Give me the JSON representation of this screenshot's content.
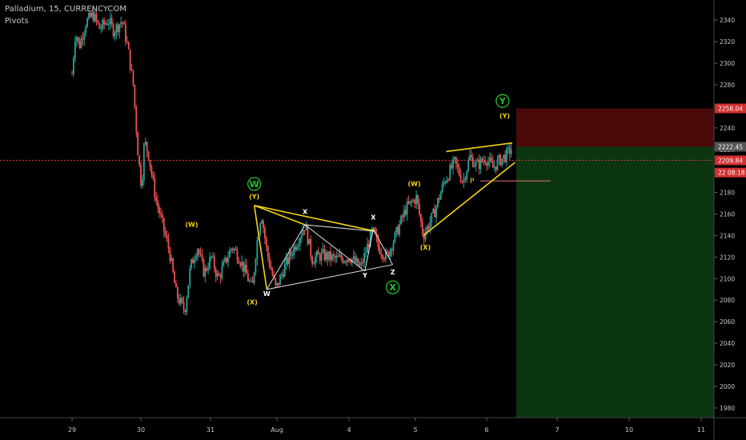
{
  "header": {
    "symbol_line": "Palladium, 15, CURRENCYCOM",
    "indicator": "Pivots"
  },
  "colors": {
    "background": "#000000",
    "up_candle": "#26a69a",
    "down_candle": "#ef5350",
    "pattern": "#f5d414",
    "wave_circle": "#27c227",
    "price_line": "#e53935",
    "stop_zone": "#4a0a0a",
    "target_zone": "#0b3510",
    "text": "#c8c8c8"
  },
  "chart_data": {
    "type": "candlestick",
    "x_ticks": [
      "29",
      "30",
      "31",
      "Aug",
      "4",
      "5",
      "6",
      "7",
      "10",
      "11"
    ],
    "y_ticks": [
      1980,
      2000,
      2020,
      2040,
      2060,
      2080,
      2100,
      2120,
      2140,
      2160,
      2180,
      2200,
      2220,
      2240,
      2260,
      2280,
      2300,
      2320,
      2340
    ],
    "ylim": [
      1971,
      2355
    ],
    "price_tags": [
      {
        "value": 2258.04,
        "text": "2258.04",
        "bg": "#d32f2f"
      },
      {
        "value": 2222.45,
        "text": "2222.45",
        "bg": "#555555"
      },
      {
        "value": 2209.84,
        "text": "2209.84",
        "bg": "#d32f2f"
      },
      {
        "value": 2198.5,
        "text": "22 08:18",
        "bg": "#d32f2f"
      }
    ],
    "current_price": 2209.84,
    "position": {
      "stop": 2258.04,
      "entry": 2222.45,
      "target": 1971
    },
    "pivot": {
      "label": "P",
      "value": 2190
    },
    "price_path": [
      {
        "d": 0.0,
        "p": 2290
      },
      {
        "d": 0.05,
        "p": 2330
      },
      {
        "d": 0.1,
        "p": 2315
      },
      {
        "d": 0.2,
        "p": 2338
      },
      {
        "d": 0.3,
        "p": 2345
      },
      {
        "d": 0.4,
        "p": 2332
      },
      {
        "d": 0.52,
        "p": 2340
      },
      {
        "d": 0.6,
        "p": 2330
      },
      {
        "d": 0.72,
        "p": 2340
      },
      {
        "d": 0.8,
        "p": 2315
      },
      {
        "d": 0.88,
        "p": 2280
      },
      {
        "d": 0.95,
        "p": 2215
      },
      {
        "d": 1.0,
        "p": 2185
      },
      {
        "d": 1.04,
        "p": 2228
      },
      {
        "d": 1.1,
        "p": 2215
      },
      {
        "d": 1.2,
        "p": 2175
      },
      {
        "d": 1.3,
        "p": 2150
      },
      {
        "d": 1.4,
        "p": 2125
      },
      {
        "d": 1.5,
        "p": 2085
      },
      {
        "d": 1.62,
        "p": 2070
      },
      {
        "d": 1.7,
        "p": 2110
      },
      {
        "d": 1.8,
        "p": 2130
      },
      {
        "d": 1.9,
        "p": 2105
      },
      {
        "d": 2.0,
        "p": 2120
      },
      {
        "d": 2.1,
        "p": 2100
      },
      {
        "d": 2.2,
        "p": 2115
      },
      {
        "d": 2.3,
        "p": 2130
      },
      {
        "d": 2.4,
        "p": 2120
      },
      {
        "d": 2.5,
        "p": 2105
      },
      {
        "d": 2.59,
        "p": 2090
      },
      {
        "d": 2.65,
        "p": 2130
      },
      {
        "d": 2.72,
        "p": 2162
      },
      {
        "d": 2.8,
        "p": 2125
      },
      {
        "d": 2.93,
        "p": 2090
      },
      {
        "d": 3.05,
        "p": 2110
      },
      {
        "d": 3.2,
        "p": 2130
      },
      {
        "d": 3.35,
        "p": 2150
      },
      {
        "d": 3.45,
        "p": 2118
      },
      {
        "d": 3.6,
        "p": 2122
      },
      {
        "d": 3.8,
        "p": 2118
      },
      {
        "d": 4.0,
        "p": 2120
      },
      {
        "d": 4.15,
        "p": 2110
      },
      {
        "d": 4.32,
        "p": 2145
      },
      {
        "d": 4.4,
        "p": 2130
      },
      {
        "d": 4.52,
        "p": 2120
      },
      {
        "d": 4.65,
        "p": 2140
      },
      {
        "d": 4.8,
        "p": 2165
      },
      {
        "d": 4.95,
        "p": 2175
      },
      {
        "d": 5.05,
        "p": 2140
      },
      {
        "d": 5.2,
        "p": 2160
      },
      {
        "d": 5.35,
        "p": 2190
      },
      {
        "d": 5.5,
        "p": 2208
      },
      {
        "d": 5.62,
        "p": 2190
      },
      {
        "d": 5.72,
        "p": 2213
      },
      {
        "d": 5.82,
        "p": 2205
      },
      {
        "d": 5.95,
        "p": 2212
      },
      {
        "d": 6.05,
        "p": 2203
      },
      {
        "d": 6.15,
        "p": 2210
      },
      {
        "d": 6.25,
        "p": 2215
      },
      {
        "d": 6.33,
        "p": 2222
      }
    ],
    "trend_lines": [
      {
        "x1": 2.62,
        "y1": 2168,
        "x2": 3.35,
        "y2": 2150
      },
      {
        "x1": 3.35,
        "y1": 2150,
        "x2": 4.36,
        "y2": 2144
      },
      {
        "x1": 2.62,
        "y1": 2168,
        "x2": 4.36,
        "y2": 2144
      },
      {
        "x1": 2.62,
        "y1": 2168,
        "x2": 2.8,
        "y2": 2090
      },
      {
        "x1": 2.8,
        "y1": 2090,
        "x2": 4.61,
        "y2": 2113
      },
      {
        "x1": 2.8,
        "y1": 2090,
        "x2": 3.35,
        "y2": 2150
      },
      {
        "x1": 3.35,
        "y1": 2150,
        "x2": 4.21,
        "y2": 2107
      },
      {
        "x1": 4.21,
        "y1": 2107,
        "x2": 4.33,
        "y2": 2146
      },
      {
        "x1": 4.33,
        "y1": 2146,
        "x2": 4.61,
        "y2": 2113
      },
      {
        "x1": 5.05,
        "y1": 2140,
        "x2": 6.37,
        "y2": 2208
      },
      {
        "x1": 5.38,
        "y1": 2218,
        "x2": 6.33,
        "y2": 2226
      }
    ],
    "wave_labels": [
      {
        "text": "(W)",
        "d": 1.72,
        "p": 2148,
        "color": "#f5d414"
      },
      {
        "text": "(X)",
        "d": 2.59,
        "p": 2076,
        "color": "#f5d414"
      },
      {
        "text": "(Y)",
        "d": 2.62,
        "p": 2174,
        "color": "#f5d414"
      },
      {
        "text": "W",
        "d": 2.8,
        "p": 2084,
        "color": "#ffffff"
      },
      {
        "text": "X",
        "d": 3.35,
        "p": 2160,
        "color": "#ffffff"
      },
      {
        "text": "Y",
        "d": 4.21,
        "p": 2101,
        "color": "#ffffff"
      },
      {
        "text": "X",
        "d": 4.33,
        "p": 2155,
        "color": "#ffffff"
      },
      {
        "text": "Z",
        "d": 4.61,
        "p": 2104,
        "color": "#ffffff"
      },
      {
        "text": "(W)",
        "d": 4.92,
        "p": 2186,
        "color": "#f5d414"
      },
      {
        "text": "(X)",
        "d": 5.08,
        "p": 2127,
        "color": "#f5d414"
      },
      {
        "text": "(Y)",
        "d": 6.22,
        "p": 2249,
        "color": "#f5d414"
      }
    ],
    "wave_circles": [
      {
        "text": "W",
        "d": 2.62,
        "p": 2188
      },
      {
        "text": "X",
        "d": 4.61,
        "p": 2092
      },
      {
        "text": "Y",
        "d": 6.19,
        "p": 2265
      }
    ]
  }
}
